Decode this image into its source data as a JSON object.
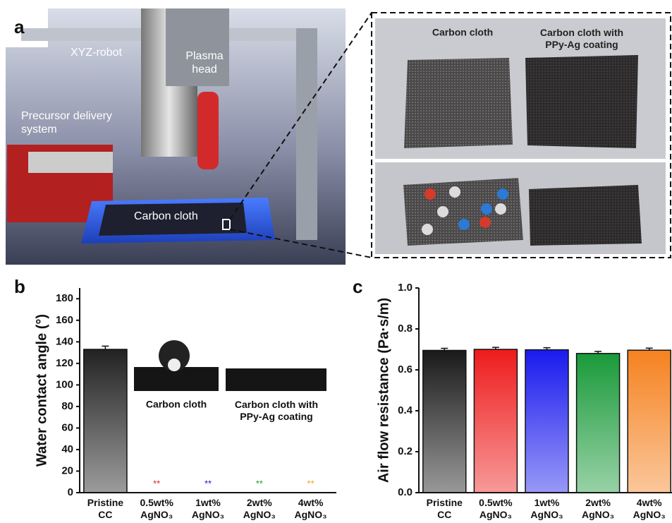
{
  "panel_a": {
    "label": "a",
    "photo_labels": [
      "XYZ-robot",
      "Plasma head",
      "Precursor delivery system",
      "Carbon cloth"
    ],
    "sample_labels": [
      "Carbon cloth",
      "Carbon cloth with PPy-Ag coating"
    ]
  },
  "chart_data": [
    {
      "type": "bar",
      "panel": "b",
      "y_label": "Water contact angle (°)",
      "categories": [
        "Pristine CC",
        "0.5wt% AgNO₃",
        "1wt% AgNO₃",
        "2wt% AgNO₃",
        "4wt% AgNO₃"
      ],
      "values": [
        133,
        0,
        0,
        0,
        0
      ],
      "errors": [
        3,
        null,
        null,
        null,
        null
      ],
      "colors": [
        "#222222",
        "#222222",
        "#222222",
        "#222222",
        "#222222"
      ],
      "annotations": [
        null,
        {
          "text": "**",
          "color": "#d62728"
        },
        {
          "text": "**",
          "color": "#2020c8"
        },
        {
          "text": "**",
          "color": "#2a9a2a"
        },
        {
          "text": "**",
          "color": "#f0a020"
        }
      ],
      "inset_labels": [
        "Carbon cloth",
        "Carbon cloth with PPy-Ag coating"
      ],
      "ylim": [
        0,
        190
      ],
      "yticks": [
        0,
        20,
        40,
        60,
        80,
        100,
        120,
        140,
        160,
        180
      ]
    },
    {
      "type": "bar",
      "panel": "c",
      "y_label": "Air flow resistance (Pa·s/m)",
      "categories": [
        "Pristine CC",
        "0.5wt% AgNO₃",
        "1wt% AgNO₃",
        "2wt% AgNO₃",
        "4wt% AgNO₃"
      ],
      "values": [
        0.695,
        0.7,
        0.698,
        0.68,
        0.696
      ],
      "errors": [
        0.01,
        0.01,
        0.01,
        0.01,
        0.01
      ],
      "colors": [
        "#1a1a1a",
        "#ee1c1c",
        "#1a1aee",
        "#1a9a3a",
        "#f58220"
      ],
      "ylim": [
        0,
        1.0
      ],
      "yticks": [
        {
          "value": 0,
          "label": "0.0"
        },
        0.2,
        0.4,
        0.6,
        0.8,
        {
          "value": 1,
          "label": "1.0"
        }
      ]
    }
  ]
}
